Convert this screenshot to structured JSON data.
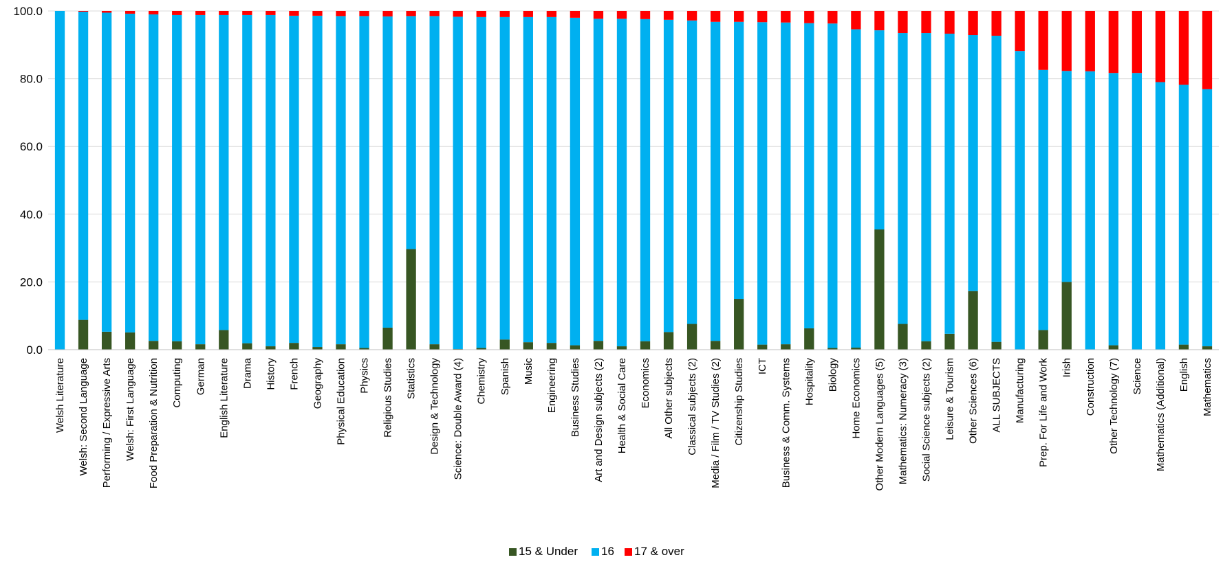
{
  "chart_data": {
    "type": "bar",
    "stacked": true,
    "ylim": [
      0,
      100
    ],
    "yticks": [
      "0.0",
      "20.0",
      "40.0",
      "60.0",
      "80.0",
      "100.0"
    ],
    "grid": true,
    "legend_position": "bottom-center",
    "categories": [
      "Welsh Literature",
      "Welsh: Second Language",
      "Performing / Expressive Arts",
      "Welsh: First Language",
      "Food Preparation & Nutrition",
      "Computing",
      "German",
      "English Literature",
      "Drama",
      "History",
      "French",
      "Geography",
      "Physical Education",
      "Physics",
      "Religious Studies",
      "Statistics",
      "Design & Technology",
      "Science: Double Award (4)",
      "Chemistry",
      "Spanish",
      "Music",
      "Engineering",
      "Business Studies",
      "Art and Design subjects (2)",
      "Health & Social Care",
      "Economics",
      "All Other subjects",
      "Classical subjects (2)",
      "Media / Film / TV Studies (2)",
      "Citizenship Studies",
      "ICT",
      "Business & Comm. Systems",
      "Hospitality",
      "Biology",
      "Home Economics",
      "Other Modern Languages (5)",
      "Mathematics: Numeracy (3)",
      "Social Science subjects (2)",
      "Leisure & Tourism",
      "Other Sciences (6)",
      "ALL SUBJECTS",
      "Manufacturing",
      "Prep. For Life and Work",
      "Irish",
      "Construction",
      "Other Technology (7)",
      "Science",
      "Mathematics (Additional)",
      "English",
      "Mathematics"
    ],
    "series": [
      {
        "name": "15 & Under",
        "color": "#375623",
        "values": [
          0,
          8.8,
          5.3,
          5.1,
          2.6,
          2.5,
          1.6,
          5.8,
          1.9,
          1.0,
          2.0,
          0.8,
          1.6,
          0.5,
          6.5,
          29.7,
          1.6,
          0.2,
          0.5,
          3.0,
          2.2,
          2.0,
          1.3,
          2.6,
          1.0,
          2.5,
          5.2,
          7.6,
          2.6,
          15.0,
          1.5,
          1.6,
          6.3,
          0.5,
          0.6,
          35.5,
          7.6,
          2.5,
          4.7,
          17.3,
          2.3,
          0,
          5.8,
          20.0,
          0,
          1.3,
          0,
          0,
          1.5,
          1.0
        ]
      },
      {
        "name": "16",
        "color": "#00b0f0",
        "values": [
          100.0,
          91.0,
          94.2,
          94.1,
          96.4,
          96.3,
          97.2,
          93.0,
          96.9,
          97.8,
          96.6,
          97.8,
          96.9,
          98.0,
          91.9,
          68.8,
          96.9,
          98.1,
          97.7,
          95.2,
          96.0,
          96.2,
          96.7,
          95.1,
          96.7,
          95.1,
          92.2,
          89.6,
          94.2,
          81.8,
          95.2,
          95.0,
          90.1,
          95.8,
          94.0,
          58.8,
          85.9,
          91.0,
          88.6,
          75.6,
          90.4,
          88.2,
          76.8,
          62.3,
          82.2,
          80.4,
          81.7,
          79.0,
          76.7,
          75.9
        ]
      },
      {
        "name": "17 & over",
        "color": "#ff0000",
        "values": [
          0,
          0.2,
          0.5,
          0.8,
          1.0,
          1.2,
          1.2,
          1.2,
          1.2,
          1.2,
          1.4,
          1.4,
          1.5,
          1.5,
          1.6,
          1.5,
          1.5,
          1.7,
          1.8,
          1.8,
          1.8,
          1.8,
          2.0,
          2.3,
          2.3,
          2.4,
          2.6,
          2.8,
          3.2,
          3.2,
          3.3,
          3.4,
          3.6,
          3.7,
          5.4,
          5.7,
          6.5,
          6.5,
          6.7,
          7.1,
          7.3,
          11.8,
          17.4,
          17.7,
          17.8,
          18.3,
          18.3,
          21.0,
          21.8,
          23.1
        ]
      }
    ]
  }
}
